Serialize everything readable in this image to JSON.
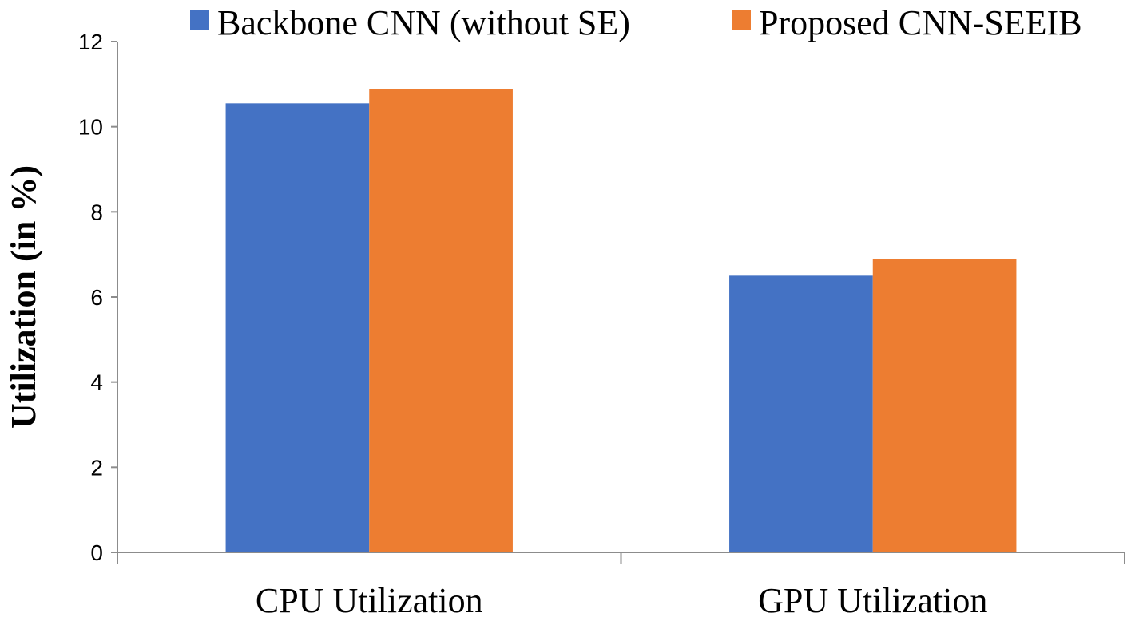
{
  "chart_data": {
    "type": "bar",
    "title": "",
    "xlabel": "",
    "ylabel": "Utilization (in %)",
    "categories": [
      "CPU Utilization",
      "GPU Utilization"
    ],
    "series": [
      {
        "name": "Backbone CNN (without SE)",
        "color": "#4472C4",
        "values": [
          10.55,
          6.5
        ]
      },
      {
        "name": "Proposed CNN-SEEIB",
        "color": "#ED7D31",
        "values": [
          10.88,
          6.9
        ]
      }
    ],
    "ylim": [
      0,
      12
    ],
    "yticks": [
      "0",
      "2",
      "4",
      "6",
      "8",
      "10",
      "12"
    ],
    "grid": false,
    "legend_position": "top"
  }
}
